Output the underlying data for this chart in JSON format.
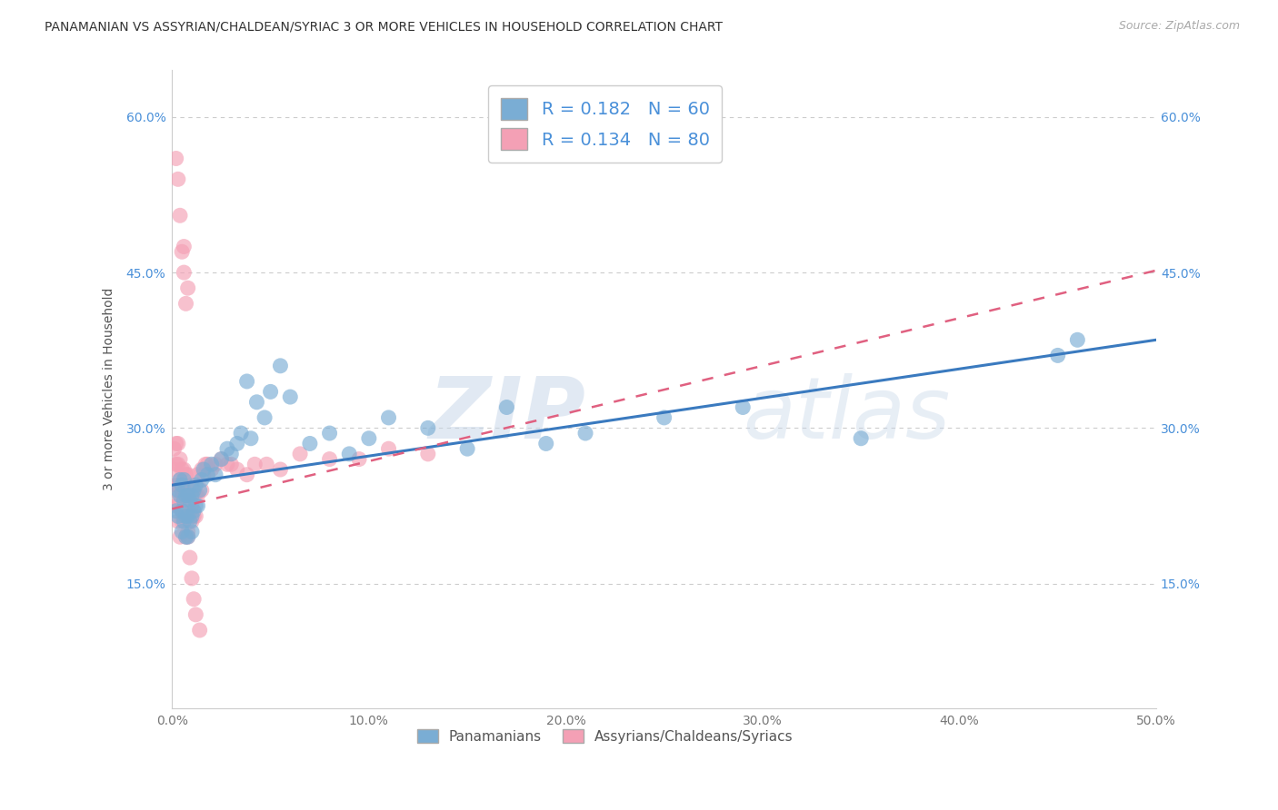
{
  "title": "PANAMANIAN VS ASSYRIAN/CHALDEAN/SYRIAC 3 OR MORE VEHICLES IN HOUSEHOLD CORRELATION CHART",
  "source": "Source: ZipAtlas.com",
  "ylabel": "3 or more Vehicles in Household",
  "xlim": [
    0.0,
    0.5
  ],
  "ylim": [
    0.03,
    0.645
  ],
  "xticks": [
    0.0,
    0.1,
    0.2,
    0.3,
    0.4,
    0.5
  ],
  "xticklabels": [
    "0.0%",
    "10.0%",
    "20.0%",
    "30.0%",
    "40.0%",
    "50.0%"
  ],
  "ytick_vals": [
    0.15,
    0.3,
    0.45,
    0.6
  ],
  "yticklabels": [
    "15.0%",
    "30.0%",
    "45.0%",
    "60.0%"
  ],
  "grid_color": "#cccccc",
  "bg_color": "#ffffff",
  "blue_color": "#7aadd4",
  "pink_color": "#f4a0b5",
  "blue_line_color": "#3a7abf",
  "pink_line_color": "#e06080",
  "blue_R": 0.182,
  "blue_N": 60,
  "pink_R": 0.134,
  "pink_N": 80,
  "watermark_zip": "ZIP",
  "watermark_atlas": "atlas",
  "legend_label_blue": "Panamanians",
  "legend_label_pink": "Assyrians/Chaldeans/Syriacs",
  "blue_x": [
    0.002,
    0.003,
    0.003,
    0.004,
    0.004,
    0.005,
    0.005,
    0.005,
    0.006,
    0.006,
    0.006,
    0.007,
    0.007,
    0.007,
    0.008,
    0.008,
    0.008,
    0.009,
    0.009,
    0.01,
    0.01,
    0.01,
    0.011,
    0.011,
    0.012,
    0.012,
    0.013,
    0.014,
    0.015,
    0.016,
    0.018,
    0.02,
    0.022,
    0.025,
    0.028,
    0.03,
    0.033,
    0.035,
    0.038,
    0.04,
    0.043,
    0.047,
    0.05,
    0.055,
    0.06,
    0.07,
    0.08,
    0.09,
    0.1,
    0.11,
    0.13,
    0.15,
    0.17,
    0.19,
    0.21,
    0.25,
    0.29,
    0.35,
    0.45,
    0.46
  ],
  "blue_y": [
    0.22,
    0.24,
    0.215,
    0.235,
    0.25,
    0.2,
    0.22,
    0.245,
    0.21,
    0.23,
    0.25,
    0.195,
    0.215,
    0.235,
    0.195,
    0.215,
    0.235,
    0.21,
    0.23,
    0.2,
    0.215,
    0.235,
    0.22,
    0.24,
    0.225,
    0.245,
    0.225,
    0.24,
    0.25,
    0.26,
    0.255,
    0.265,
    0.255,
    0.27,
    0.28,
    0.275,
    0.285,
    0.295,
    0.345,
    0.29,
    0.325,
    0.31,
    0.335,
    0.36,
    0.33,
    0.285,
    0.295,
    0.275,
    0.29,
    0.31,
    0.3,
    0.28,
    0.32,
    0.285,
    0.295,
    0.31,
    0.32,
    0.29,
    0.37,
    0.385
  ],
  "pink_x": [
    0.001,
    0.001,
    0.001,
    0.002,
    0.002,
    0.002,
    0.002,
    0.003,
    0.003,
    0.003,
    0.003,
    0.003,
    0.004,
    0.004,
    0.004,
    0.004,
    0.005,
    0.005,
    0.005,
    0.005,
    0.005,
    0.006,
    0.006,
    0.006,
    0.006,
    0.006,
    0.007,
    0.007,
    0.007,
    0.007,
    0.008,
    0.008,
    0.008,
    0.008,
    0.009,
    0.009,
    0.009,
    0.01,
    0.01,
    0.01,
    0.011,
    0.011,
    0.012,
    0.012,
    0.013,
    0.013,
    0.015,
    0.015,
    0.016,
    0.017,
    0.018,
    0.02,
    0.022,
    0.025,
    0.028,
    0.03,
    0.033,
    0.038,
    0.042,
    0.048,
    0.055,
    0.065,
    0.08,
    0.095,
    0.11,
    0.13,
    0.002,
    0.003,
    0.004,
    0.005,
    0.006,
    0.007,
    0.008,
    0.009,
    0.01,
    0.011,
    0.012,
    0.014,
    0.006,
    0.008
  ],
  "pink_y": [
    0.24,
    0.26,
    0.28,
    0.225,
    0.245,
    0.265,
    0.285,
    0.225,
    0.245,
    0.265,
    0.285,
    0.21,
    0.23,
    0.25,
    0.27,
    0.195,
    0.22,
    0.24,
    0.26,
    0.21,
    0.235,
    0.22,
    0.24,
    0.26,
    0.215,
    0.235,
    0.215,
    0.235,
    0.255,
    0.195,
    0.215,
    0.235,
    0.255,
    0.2,
    0.22,
    0.24,
    0.215,
    0.225,
    0.245,
    0.21,
    0.235,
    0.215,
    0.235,
    0.215,
    0.235,
    0.255,
    0.24,
    0.26,
    0.255,
    0.265,
    0.265,
    0.26,
    0.265,
    0.27,
    0.265,
    0.265,
    0.26,
    0.255,
    0.265,
    0.265,
    0.26,
    0.275,
    0.27,
    0.27,
    0.28,
    0.275,
    0.56,
    0.54,
    0.505,
    0.47,
    0.45,
    0.42,
    0.195,
    0.175,
    0.155,
    0.135,
    0.12,
    0.105,
    0.475,
    0.435
  ]
}
